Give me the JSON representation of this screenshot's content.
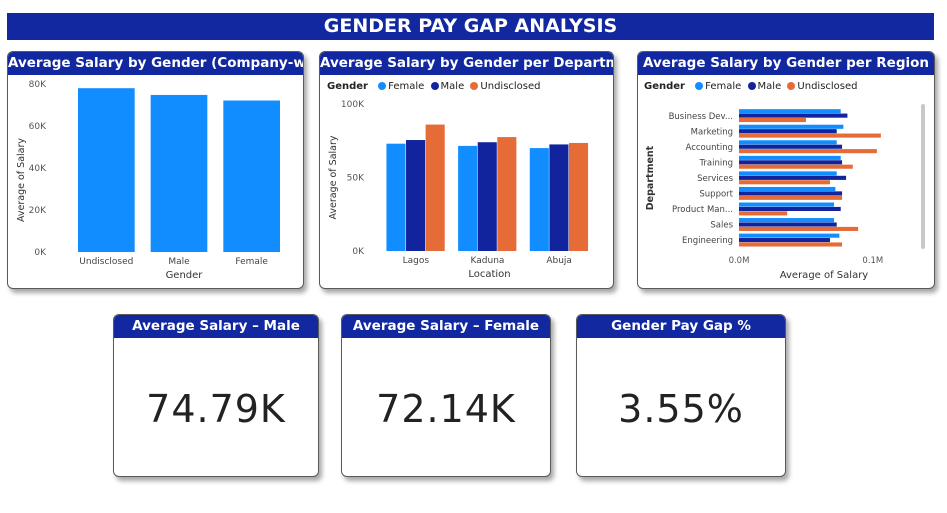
{
  "dashboard": {
    "title": "GENDER PAY GAP ANALYSIS"
  },
  "colors": {
    "female": "#118dff",
    "male": "#12239e",
    "undisclosed": "#e66c37",
    "header": "#1228a0"
  },
  "legend": {
    "title": "Gender",
    "items": [
      "Female",
      "Male",
      "Undisclosed"
    ]
  },
  "kpis": [
    {
      "title": "Average Salary – Male",
      "value": "74.79K"
    },
    {
      "title": "Average Salary – Female",
      "value": "72.14K"
    },
    {
      "title": "Gender Pay Gap %",
      "value": "3.55%"
    }
  ],
  "chart_data": [
    {
      "type": "bar",
      "title": "Average Salary by Gender (Company-wide)",
      "xlabel": "Gender",
      "ylabel": "Average of Salary",
      "categories": [
        "Undisclosed",
        "Male",
        "Female"
      ],
      "values": [
        78000,
        74790,
        72140
      ],
      "yticks": [
        "0K",
        "20K",
        "40K",
        "60K",
        "80K"
      ],
      "ylim": [
        0,
        80000
      ],
      "color": "#118dff"
    },
    {
      "type": "bar",
      "title": "Average Salary by Gender per Department",
      "xlabel": "Location",
      "ylabel": "Average of Salary",
      "categories": [
        "Lagos",
        "Kaduna",
        "Abuja"
      ],
      "series": [
        {
          "name": "Female",
          "values": [
            73000,
            71500,
            70000
          ]
        },
        {
          "name": "Male",
          "values": [
            75500,
            74000,
            72500
          ]
        },
        {
          "name": "Undisclosed",
          "values": [
            86000,
            77500,
            73500
          ]
        }
      ],
      "yticks": [
        "0K",
        "50K",
        "100K"
      ],
      "ylim": [
        0,
        100000
      ]
    },
    {
      "type": "bar",
      "orientation": "horizontal",
      "title": "Average Salary by Gender per Region",
      "xlabel": "Average of Salary",
      "ylabel": "Department",
      "categories": [
        "Business Dev...",
        "Marketing",
        "Accounting",
        "Training",
        "Services",
        "Support",
        "Product Man...",
        "Sales",
        "Engineering"
      ],
      "series": [
        {
          "name": "Female",
          "values": [
            76000,
            78000,
            73000,
            76000,
            73000,
            72000,
            71000,
            71000,
            75000
          ]
        },
        {
          "name": "Male",
          "values": [
            81000,
            73000,
            77000,
            77000,
            80000,
            77000,
            76000,
            73000,
            68000
          ]
        },
        {
          "name": "Undisclosed",
          "values": [
            50000,
            106000,
            103000,
            85000,
            68000,
            77000,
            36000,
            89000,
            77000
          ]
        }
      ],
      "xticks": [
        "0.0M",
        "0.1M"
      ],
      "xlim": [
        0,
        130000
      ]
    }
  ]
}
